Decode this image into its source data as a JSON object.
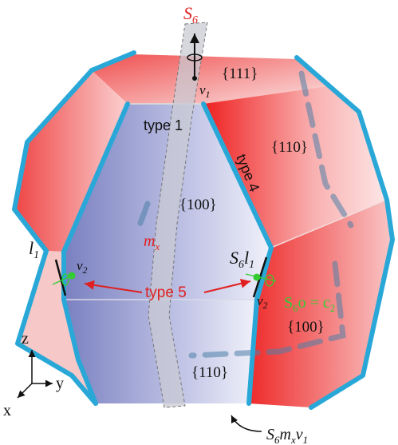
{
  "labels": {
    "s6_axis": "S",
    "s6_axis_sub": "6",
    "v1": "v",
    "v1_sub": "1",
    "face_111": "{111}",
    "face_110_right": "{110}",
    "face_100_front": "{100}",
    "face_100_right": "{100}",
    "face_110_bottom": "{110}",
    "type1": "type 1",
    "type4": "type 4",
    "type5": "type 5",
    "mx": "m",
    "mx_sub": "x",
    "l1_left": "l",
    "l1_left_sub": "1",
    "v2_left": "v",
    "v2_left_sub": "2",
    "s6l1": "S",
    "s6l1_sub": "6",
    "s6l1_l": "l",
    "s6l1_l_sub": "1",
    "v2_right": "v",
    "v2_right_sub": "2",
    "s6o": "S",
    "s6o_sub": "6",
    "s6o_rest": "o = c",
    "s6o_rest_sub": "2",
    "bottom_label": "S",
    "bottom_label_sub1": "6",
    "bottom_label_m": "m",
    "bottom_label_m_sub": "x",
    "bottom_label_v": "v",
    "bottom_label_v_sub": "1",
    "axis_z": "z",
    "axis_y": "y",
    "axis_x": "x"
  },
  "colors": {
    "edge": "#29a8d8",
    "red_face": "#ee3a3a",
    "blue_face": "#7f86c4",
    "symbol_red": "#e02020",
    "green": "#33cc33"
  }
}
